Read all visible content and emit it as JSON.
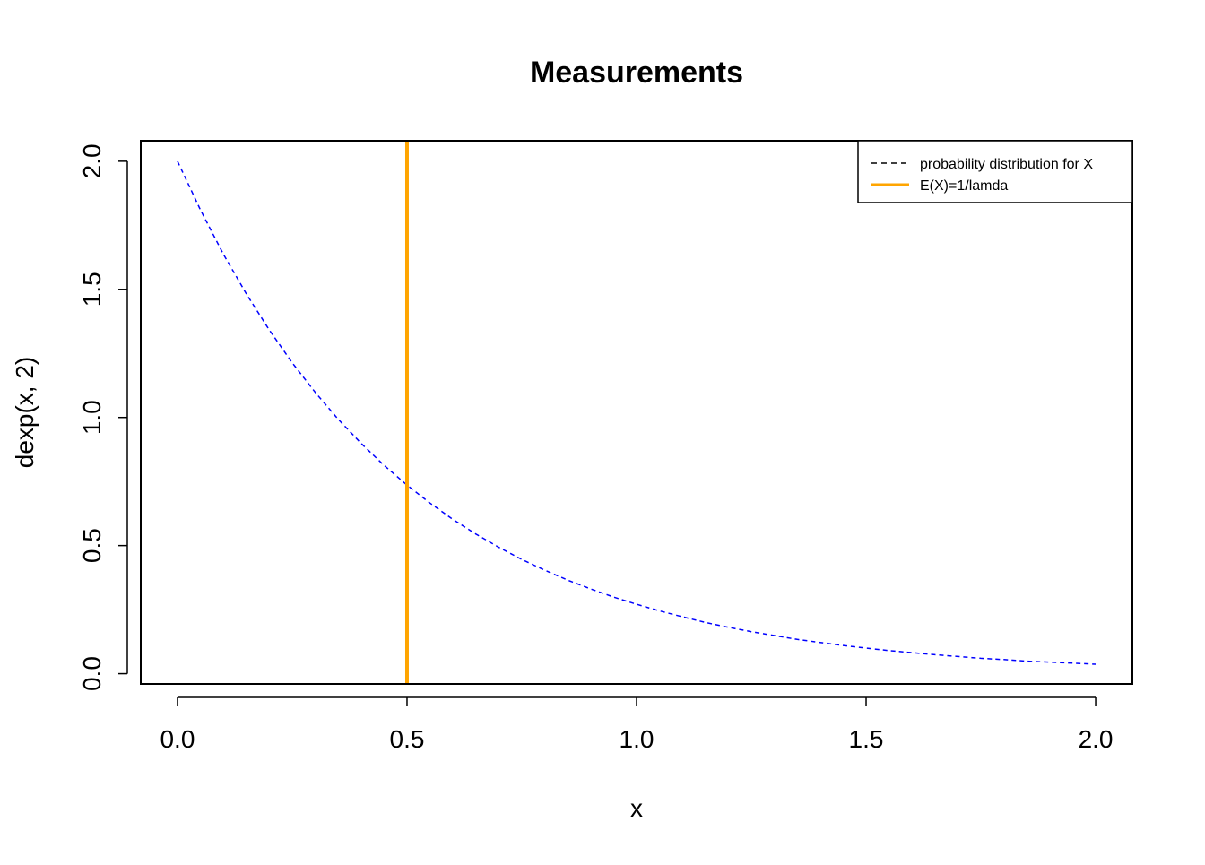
{
  "chart_data": {
    "type": "line",
    "title": "Measurements",
    "xlabel": "x",
    "ylabel": "dexp(x, 2)",
    "xlim": [
      -0.08,
      2.08
    ],
    "ylim": [
      -0.04,
      2.08
    ],
    "xticks": [
      0.0,
      0.5,
      1.0,
      1.5,
      2.0
    ],
    "xtick_labels": [
      "0.0",
      "0.5",
      "1.0",
      "1.5",
      "2.0"
    ],
    "yticks": [
      0.0,
      0.5,
      1.0,
      1.5,
      2.0
    ],
    "ytick_labels": [
      "0.0",
      "0.5",
      "1.0",
      "1.5",
      "2.0"
    ],
    "grid": false,
    "legend_position": "top-right",
    "series": [
      {
        "name": "probability distribution for X",
        "style": "dashed",
        "color": "#0000ff",
        "x": [
          0.0,
          0.05,
          0.1,
          0.15,
          0.2,
          0.25,
          0.3,
          0.35,
          0.4,
          0.45,
          0.5,
          0.55,
          0.6,
          0.65,
          0.7,
          0.75,
          0.8,
          0.85,
          0.9,
          0.95,
          1.0,
          1.05,
          1.1,
          1.15,
          1.2,
          1.25,
          1.3,
          1.35,
          1.4,
          1.45,
          1.5,
          1.55,
          1.6,
          1.65,
          1.7,
          1.75,
          1.8,
          1.85,
          1.9,
          1.95,
          2.0
        ],
        "y": [
          2.0,
          1.81,
          1.637,
          1.482,
          1.341,
          1.213,
          1.098,
          0.993,
          0.899,
          0.813,
          0.736,
          0.666,
          0.602,
          0.545,
          0.493,
          0.446,
          0.404,
          0.365,
          0.331,
          0.299,
          0.271,
          0.245,
          0.222,
          0.2,
          0.181,
          0.164,
          0.149,
          0.134,
          0.122,
          0.11,
          0.1,
          0.09,
          0.082,
          0.074,
          0.067,
          0.06,
          0.055,
          0.049,
          0.045,
          0.041,
          0.037
        ]
      },
      {
        "name": "E(X)=1/lamda",
        "style": "vertical-line",
        "color": "#ffa500",
        "x": 0.5
      }
    ]
  }
}
